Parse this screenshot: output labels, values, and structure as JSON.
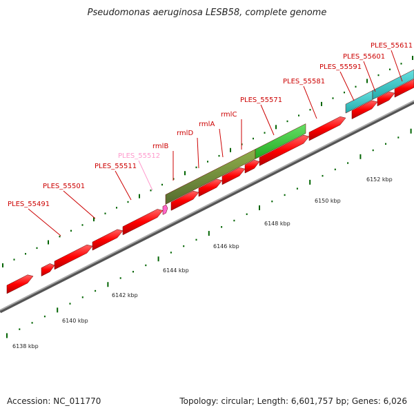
{
  "title": "Pseudomonas aeruginosa LESB58, complete genome",
  "footer": {
    "accession": "Accession: NC_011770",
    "summary": "Topology: circular; Length: 6,601,757 bp; Genes: 6,026"
  },
  "colors": {
    "gene": "#ff0000",
    "highlight_gene_label": "#ff99cc",
    "operon_green_dark": "#6b8e23",
    "operon_green_bright": "#33cc33",
    "operon_cyan": "#33cccc",
    "tick": "#006400",
    "backbone": "#999999",
    "label": "#cc0000"
  },
  "scale": {
    "unit": "kbp",
    "ticks": [
      {
        "label": "6138 kbp",
        "position_kbp": 6138
      },
      {
        "label": "6140 kbp",
        "position_kbp": 6140
      },
      {
        "label": "6142 kbp",
        "position_kbp": 6142
      },
      {
        "label": "6144 kbp",
        "position_kbp": 6144
      },
      {
        "label": "6146 kbp",
        "position_kbp": 6146
      },
      {
        "label": "6148 kbp",
        "position_kbp": 6148
      },
      {
        "label": "6150 kbp",
        "position_kbp": 6150
      },
      {
        "label": "6152 kbp",
        "position_kbp": 6152
      }
    ]
  },
  "gene_labels": [
    {
      "name": "PLES_55491",
      "highlight": false
    },
    {
      "name": "PLES_55501",
      "highlight": false
    },
    {
      "name": "PLES_55511",
      "highlight": false
    },
    {
      "name": "PLES_55512",
      "highlight": true
    },
    {
      "name": "rmlB",
      "highlight": false
    },
    {
      "name": "rmlD",
      "highlight": false
    },
    {
      "name": "rmlA",
      "highlight": false
    },
    {
      "name": "rmlC",
      "highlight": false
    },
    {
      "name": "PLES_55571",
      "highlight": false
    },
    {
      "name": "PLES_55581",
      "highlight": false
    },
    {
      "name": "PLES_55591",
      "highlight": false
    },
    {
      "name": "PLES_55601",
      "highlight": false
    },
    {
      "name": "PLES_55611",
      "highlight": false
    }
  ]
}
